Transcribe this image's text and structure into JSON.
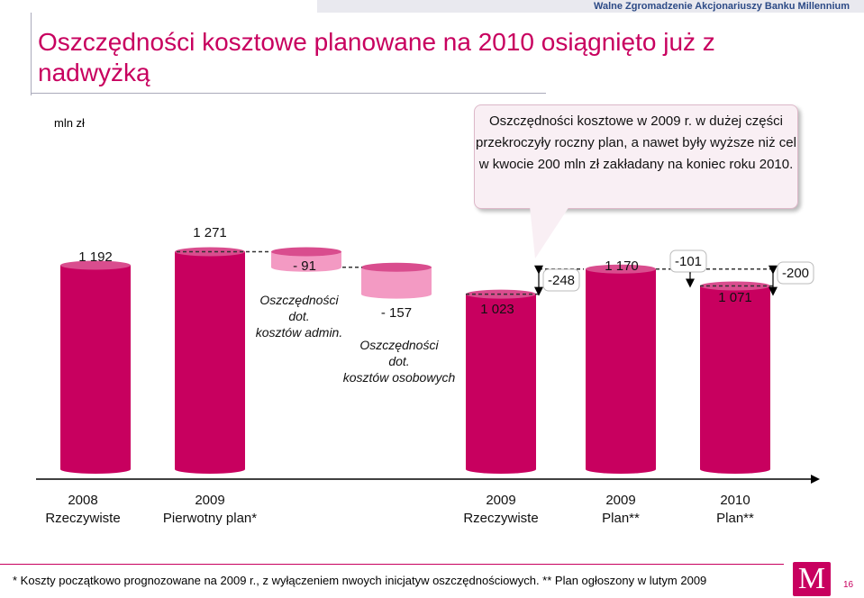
{
  "header": {
    "org": "Walne Zgromadzenie Akcjonariuszy Banku Millennium"
  },
  "title": "Oszczędności kosztowe planowane na 2010  osiągnięto już z nadwyżką",
  "unit": "mln zł",
  "callout": "Oszczędności kosztowe w 2009 r. w dużej części przekroczyły roczny plan, a nawet były wyższe niż cel w kwocie 200 mln zł zakładany na koniec roku 2010.",
  "colors": {
    "bar": "#c8005f",
    "bar_shade": "#d94d8e",
    "reduction": "#f39ac3",
    "accent": "#c8005f"
  },
  "chart_data": {
    "type": "bar",
    "subtype": "waterfall",
    "categories": [
      "2008 Rzeczywiste",
      "2009 Pierwotny plan*",
      "Oszczędności dot. kosztów admin.",
      "Oszczędności dot. kosztów osobowych",
      "2009 Rzeczywiste",
      "2009 Plan**",
      "2010 Plan**"
    ],
    "category_labels": [
      {
        "year": "2008",
        "label": "Rzeczywiste"
      },
      {
        "year": "2009",
        "label": "Pierwotny plan*"
      },
      {
        "year": "2009",
        "label": "Rzeczywiste"
      },
      {
        "year": "2009",
        "label": "Plan**"
      },
      {
        "year": "2010",
        "label": "Plan**"
      }
    ],
    "totals": [
      {
        "label": "1 192",
        "value": 1192
      },
      {
        "label": "1 271",
        "value": 1271
      },
      {
        "label": "1 023",
        "value": 1023
      },
      {
        "label": "1 170",
        "value": 1170
      },
      {
        "label": "1 071",
        "value": 1071
      }
    ],
    "reductions": [
      {
        "label": "- 91",
        "value": -91,
        "name": "Oszczędności dot. kosztów admin."
      },
      {
        "label": "- 157",
        "value": -157,
        "name": "Oszczędności dot. kosztów osobowych"
      }
    ],
    "gap_labels": [
      "-248",
      "-101",
      "-200"
    ],
    "ylim": [
      0,
      1271
    ],
    "xlabel": "",
    "ylabel": "",
    "grid": false,
    "legend": "none"
  },
  "footnote": "*  Koszty początkowo prognozowane na 2009 r., z wyłączeniem nwoych inicjatyw oszczędnościowych.   ** Plan ogłoszony w lutym 2009",
  "logo": {
    "letter": "M"
  },
  "page_number": "16"
}
